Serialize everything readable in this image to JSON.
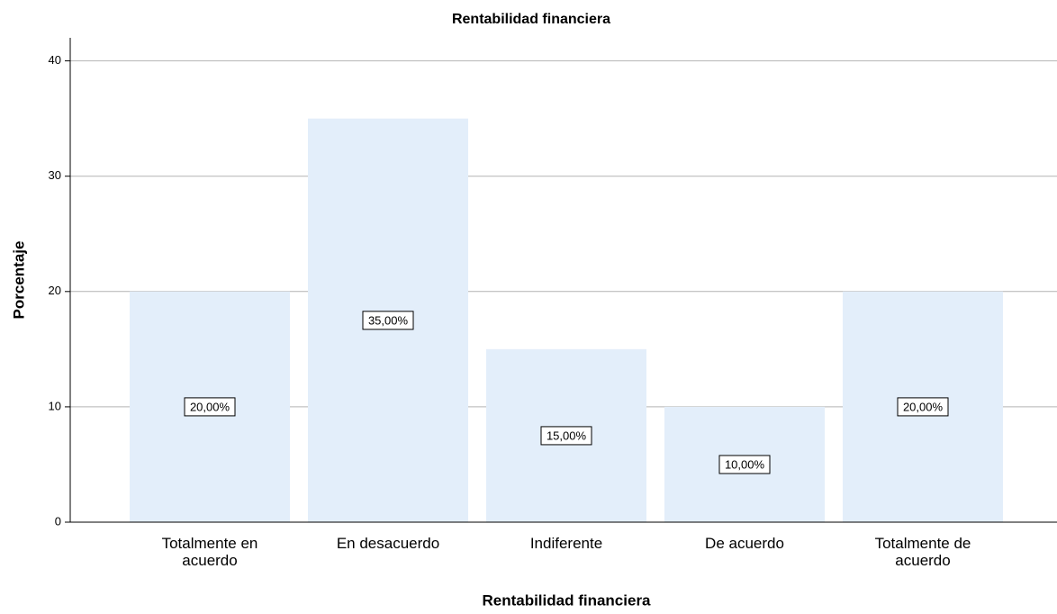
{
  "chart_data": {
    "type": "bar",
    "title": "Rentabilidad financiera",
    "x_label": "Rentabilidad financiera",
    "y_label": "Porcentaje",
    "categories": [
      "Totalmente en acuerdo",
      "En desacuerdo",
      "Indiferente",
      "De acuerdo",
      "Totalmente de acuerdo"
    ],
    "values": [
      20,
      35,
      15,
      10,
      20
    ],
    "value_labels": [
      "20,00%",
      "35,00%",
      "15,00%",
      "10,00%",
      "20,00%"
    ],
    "color": "#e3eefa",
    "ylim": [
      0,
      42
    ],
    "yticks": [
      0,
      10,
      20,
      30,
      40
    ],
    "grid": true
  }
}
